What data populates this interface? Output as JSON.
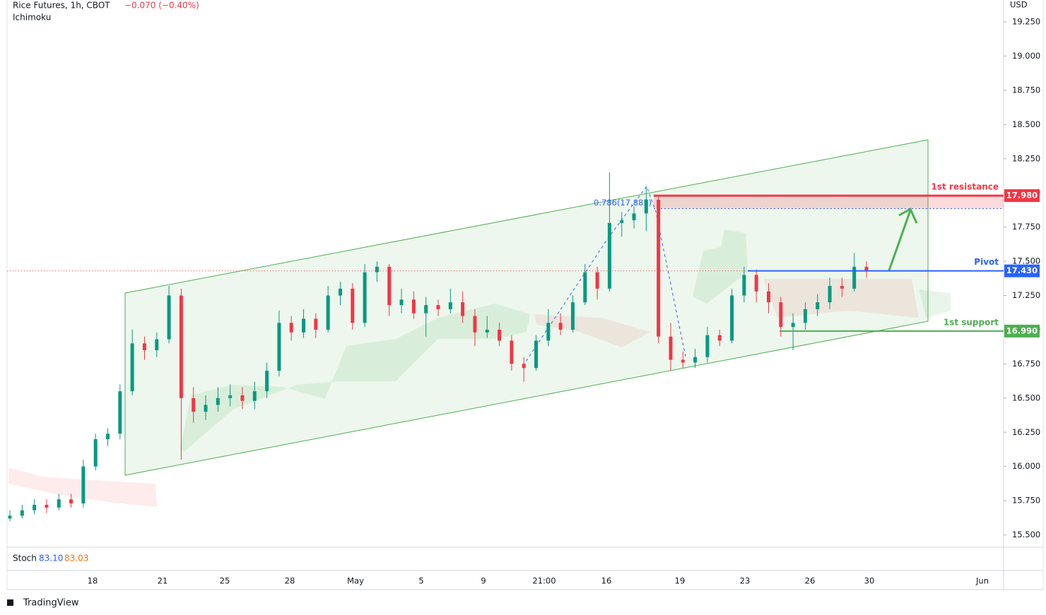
{
  "chart_data": {
    "type": "candlestick",
    "title": "Rice Futures, 1h, CBOT",
    "change": "−0.070 (−0.40%)",
    "indicator": "Ichimoku",
    "currency": "USD",
    "brand": "TradingView",
    "up_color": "#089981",
    "down_color": "#f23645",
    "ylim": [
      15.41,
      19.41
    ],
    "yticks": [
      {
        "value": 15.5,
        "label": "15.500"
      },
      {
        "value": 15.75,
        "label": "15.750"
      },
      {
        "value": 16,
        "label": "16.000"
      },
      {
        "value": 16.25,
        "label": "16.250"
      },
      {
        "value": 16.5,
        "label": "16.500"
      },
      {
        "value": 16.75,
        "label": "16.750"
      },
      {
        "value": 17,
        "label": "17.000"
      },
      {
        "value": 17.25,
        "label": "17.250"
      },
      {
        "value": 17.5,
        "label": "17.500"
      },
      {
        "value": 17.75,
        "label": "17.750"
      },
      {
        "value": 18,
        "label": "18.000"
      },
      {
        "value": 18.25,
        "label": "18.250"
      },
      {
        "value": 18.5,
        "label": "18.500"
      },
      {
        "value": 18.75,
        "label": "18.750"
      },
      {
        "value": 19,
        "label": "19.000"
      },
      {
        "value": 19.25,
        "label": "19.250"
      }
    ],
    "x_labels": [
      "18",
      "21",
      "25",
      "28",
      "May",
      "5",
      "9",
      "21:00",
      "16",
      "19",
      "23",
      "26",
      "30",
      "Jun"
    ],
    "candles": [
      [
        15.62,
        15.68,
        15.6,
        15.64
      ],
      [
        15.64,
        15.72,
        15.62,
        15.68
      ],
      [
        15.68,
        15.76,
        15.65,
        15.72
      ],
      [
        15.72,
        15.76,
        15.66,
        15.7
      ],
      [
        15.7,
        15.8,
        15.68,
        15.76
      ],
      [
        15.76,
        15.8,
        15.7,
        15.73
      ],
      [
        15.73,
        16.05,
        15.7,
        16.0
      ],
      [
        16.0,
        16.24,
        15.97,
        16.2
      ],
      [
        16.2,
        16.28,
        16.15,
        16.24
      ],
      [
        16.24,
        16.6,
        16.2,
        16.55
      ],
      [
        16.55,
        17.0,
        16.52,
        16.9
      ],
      [
        16.9,
        16.95,
        16.78,
        16.85
      ],
      [
        16.85,
        16.98,
        16.8,
        16.93
      ],
      [
        16.93,
        17.32,
        16.9,
        17.25
      ],
      [
        17.25,
        17.3,
        16.05,
        16.5
      ],
      [
        16.5,
        16.58,
        16.32,
        16.4
      ],
      [
        16.4,
        16.52,
        16.34,
        16.45
      ],
      [
        16.45,
        16.58,
        16.4,
        16.5
      ],
      [
        16.5,
        16.6,
        16.44,
        16.52
      ],
      [
        16.52,
        16.58,
        16.42,
        16.48
      ],
      [
        16.48,
        16.62,
        16.42,
        16.55
      ],
      [
        16.55,
        16.76,
        16.5,
        16.7
      ],
      [
        16.7,
        17.14,
        16.66,
        17.05
      ],
      [
        17.05,
        17.1,
        16.92,
        16.98
      ],
      [
        16.98,
        17.15,
        16.94,
        17.08
      ],
      [
        17.08,
        17.12,
        16.94,
        17.0
      ],
      [
        17.0,
        17.32,
        16.98,
        17.25
      ],
      [
        17.25,
        17.35,
        17.18,
        17.3
      ],
      [
        17.3,
        17.34,
        17.0,
        17.05
      ],
      [
        17.05,
        17.48,
        17.02,
        17.42
      ],
      [
        17.42,
        17.5,
        17.35,
        17.46
      ],
      [
        17.46,
        17.48,
        17.1,
        17.18
      ],
      [
        17.18,
        17.3,
        17.12,
        17.22
      ],
      [
        17.22,
        17.28,
        17.08,
        17.12
      ],
      [
        17.12,
        17.24,
        16.95,
        17.18
      ],
      [
        17.18,
        17.22,
        17.1,
        17.15
      ],
      [
        17.15,
        17.3,
        17.12,
        17.2
      ],
      [
        17.2,
        17.28,
        17.05,
        17.1
      ],
      [
        17.1,
        17.15,
        16.88,
        16.98
      ],
      [
        16.98,
        17.1,
        16.94,
        17.0
      ],
      [
        17.0,
        17.05,
        16.88,
        16.92
      ],
      [
        16.92,
        16.96,
        16.7,
        16.75
      ],
      [
        16.75,
        16.8,
        16.62,
        16.72
      ],
      [
        16.72,
        16.96,
        16.7,
        16.92
      ],
      [
        16.92,
        17.15,
        16.88,
        17.05
      ],
      [
        17.05,
        17.12,
        16.96,
        17.0
      ],
      [
        17.0,
        17.25,
        16.98,
        17.2
      ],
      [
        17.2,
        17.48,
        17.18,
        17.42
      ],
      [
        17.42,
        17.46,
        17.22,
        17.3
      ],
      [
        17.3,
        18.15,
        17.28,
        17.78
      ],
      [
        17.78,
        17.86,
        17.68,
        17.8
      ],
      [
        17.8,
        17.9,
        17.74,
        17.85
      ],
      [
        17.85,
        18.05,
        17.72,
        17.95
      ],
      [
        17.95,
        17.98,
        16.9,
        16.95
      ],
      [
        16.95,
        17.05,
        16.7,
        16.78
      ],
      [
        16.78,
        16.84,
        16.72,
        16.76
      ],
      [
        16.76,
        16.86,
        16.72,
        16.8
      ],
      [
        16.8,
        17.02,
        16.76,
        16.96
      ],
      [
        16.96,
        17.0,
        16.88,
        16.92
      ],
      [
        16.92,
        17.3,
        16.9,
        17.25
      ],
      [
        17.25,
        17.46,
        17.2,
        17.4
      ],
      [
        17.4,
        17.44,
        17.2,
        17.28
      ],
      [
        17.28,
        17.34,
        17.12,
        17.2
      ],
      [
        17.2,
        17.24,
        16.95,
        17.02
      ],
      [
        17.02,
        17.12,
        16.85,
        17.05
      ],
      [
        17.05,
        17.2,
        17.0,
        17.15
      ],
      [
        17.15,
        17.26,
        17.1,
        17.2
      ],
      [
        17.2,
        17.38,
        17.15,
        17.32
      ],
      [
        17.32,
        17.38,
        17.24,
        17.3
      ],
      [
        17.3,
        17.56,
        17.28,
        17.46
      ],
      [
        17.46,
        17.5,
        17.38,
        17.43
      ]
    ],
    "levels": [
      {
        "name": "1st resistance",
        "value": 17.98,
        "label": "17.980",
        "color": "#f23645"
      },
      {
        "name": "Pivot",
        "value": 17.43,
        "label": "17.430",
        "color": "#2962ff"
      },
      {
        "name": "1st support",
        "value": 16.99,
        "label": "16.990",
        "color": "#4caf50"
      }
    ],
    "fib": {
      "value": 17.885,
      "label": "0.786(17.885)"
    },
    "stoch": {
      "name": "Stoch",
      "values": [
        83.1,
        83.03
      ],
      "value_labels": [
        "83.10",
        "83.03"
      ],
      "colors": [
        "#2962ff",
        "#ff6d00"
      ]
    }
  }
}
